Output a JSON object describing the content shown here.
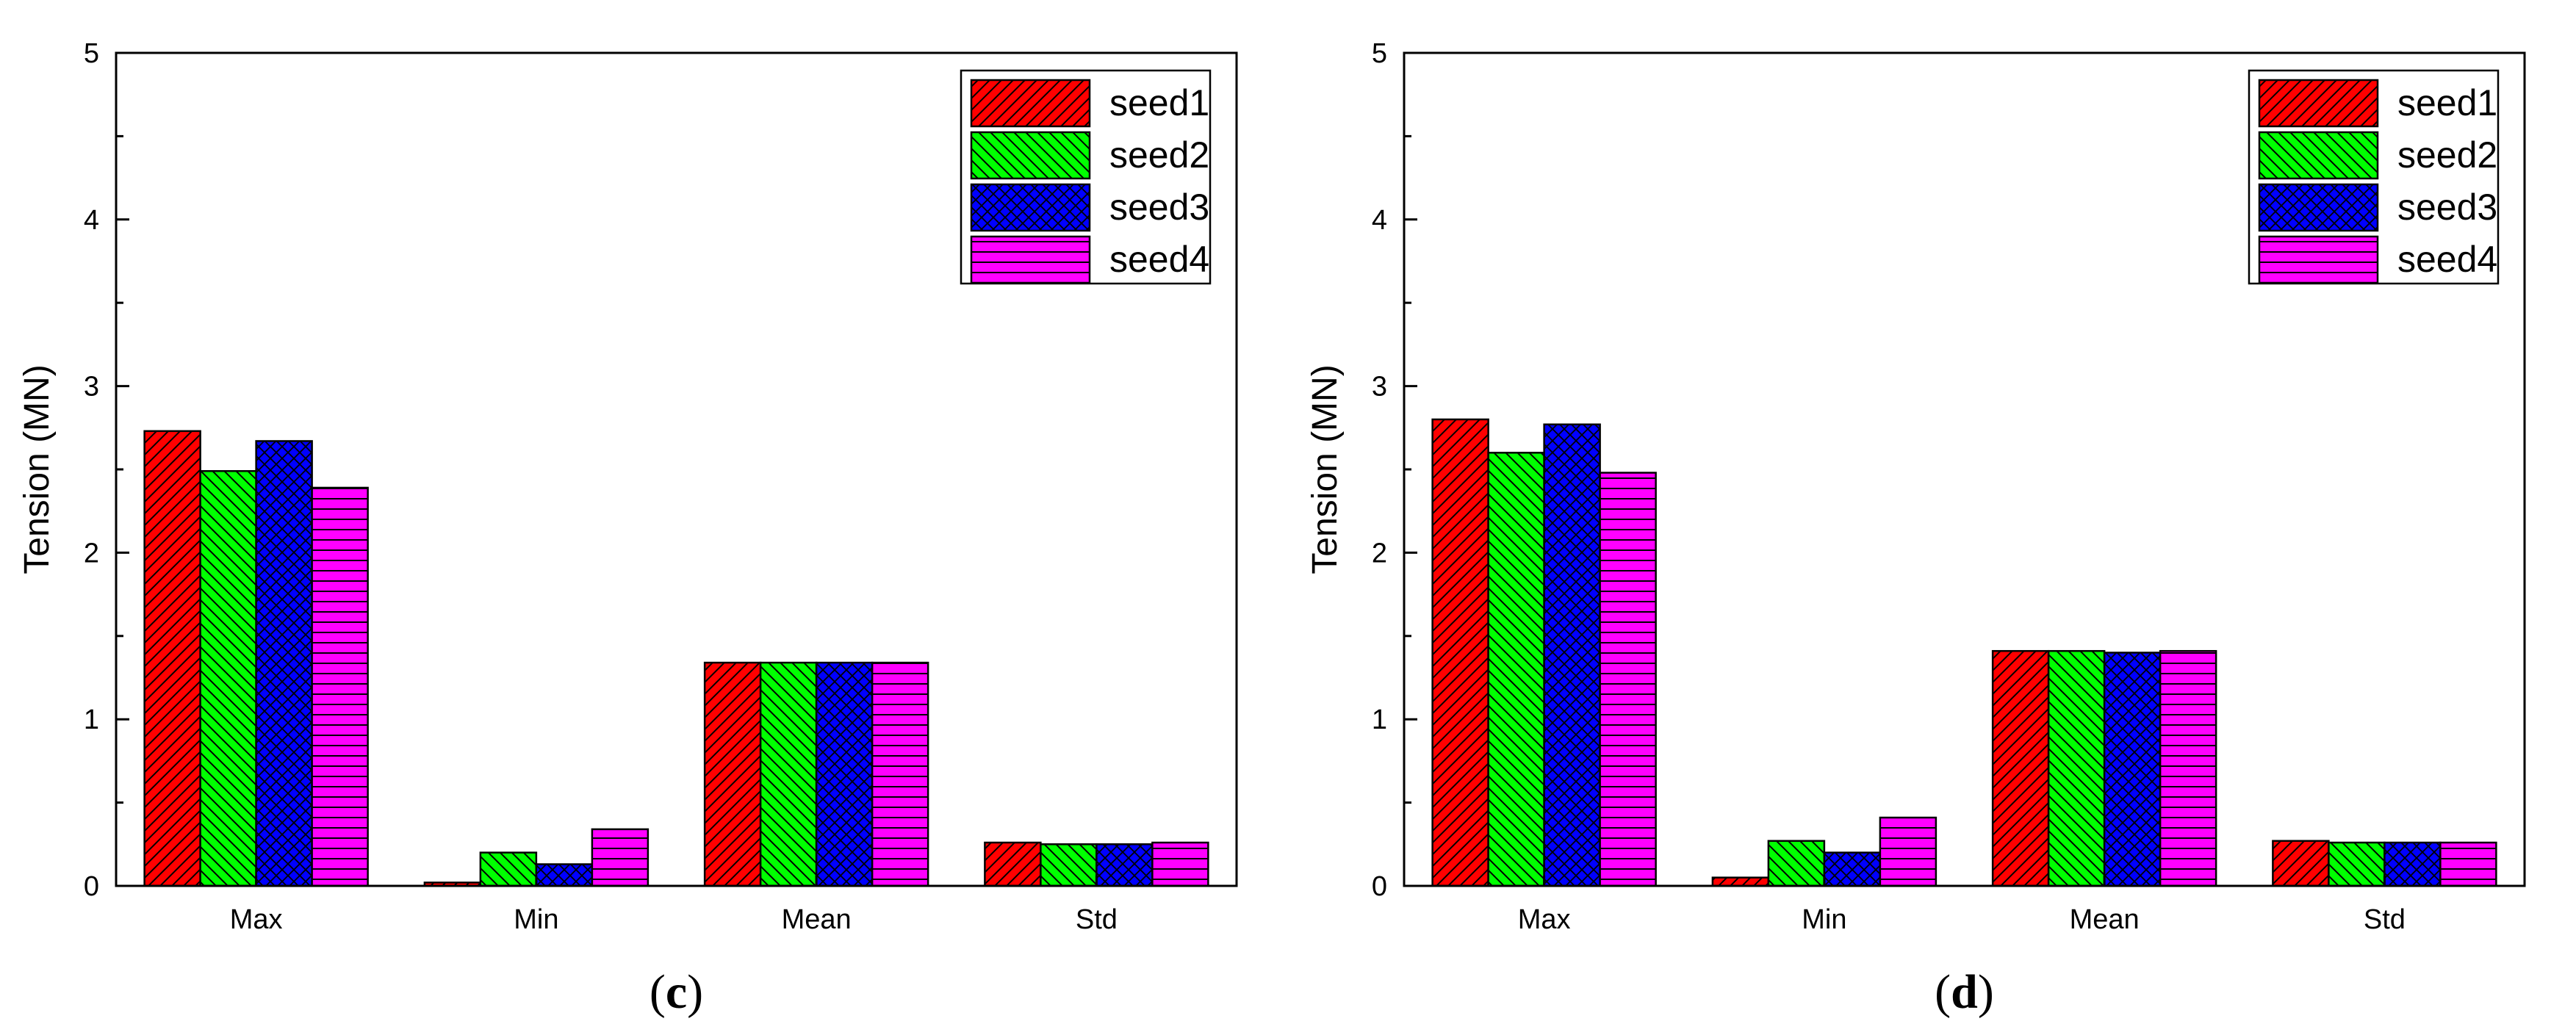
{
  "chart_data": [
    {
      "type": "bar",
      "panel_label": "c",
      "ylabel": "Tension (MN)",
      "xlabel": "",
      "ylim": [
        0,
        5
      ],
      "yticks": [
        "0",
        "1",
        "2",
        "3",
        "4",
        "5"
      ],
      "categories": [
        "Max",
        "Min",
        "Mean",
        "Std"
      ],
      "legend_position": "top-right",
      "series": [
        {
          "name": "seed1",
          "color": "#ff0000",
          "pattern": "forward-diagonal",
          "values": [
            2.73,
            0.02,
            1.34,
            0.26
          ]
        },
        {
          "name": "seed2",
          "color": "#00ff00",
          "pattern": "backward-diagonal",
          "values": [
            2.49,
            0.2,
            1.34,
            0.25
          ]
        },
        {
          "name": "seed3",
          "color": "#0000ff",
          "pattern": "crosshatch",
          "values": [
            2.67,
            0.13,
            1.34,
            0.25
          ]
        },
        {
          "name": "seed4",
          "color": "#ff00ff",
          "pattern": "horizontal",
          "values": [
            2.39,
            0.34,
            1.34,
            0.26
          ]
        }
      ]
    },
    {
      "type": "bar",
      "panel_label": "d",
      "ylabel": "Tension (MN)",
      "xlabel": "",
      "ylim": [
        0,
        5
      ],
      "yticks": [
        "0",
        "1",
        "2",
        "3",
        "4",
        "5"
      ],
      "categories": [
        "Max",
        "Min",
        "Mean",
        "Std"
      ],
      "legend_position": "top-right",
      "series": [
        {
          "name": "seed1",
          "color": "#ff0000",
          "pattern": "forward-diagonal",
          "values": [
            2.8,
            0.05,
            1.41,
            0.27
          ]
        },
        {
          "name": "seed2",
          "color": "#00ff00",
          "pattern": "backward-diagonal",
          "values": [
            2.6,
            0.27,
            1.41,
            0.26
          ]
        },
        {
          "name": "seed3",
          "color": "#0000ff",
          "pattern": "crosshatch",
          "values": [
            2.77,
            0.2,
            1.4,
            0.26
          ]
        },
        {
          "name": "seed4",
          "color": "#ff00ff",
          "pattern": "horizontal",
          "values": [
            2.48,
            0.41,
            1.41,
            0.26
          ]
        }
      ]
    }
  ]
}
